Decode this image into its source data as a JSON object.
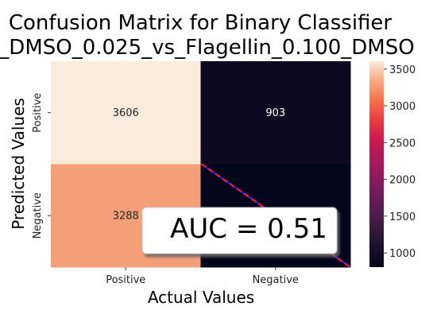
{
  "title_line1": "Confusion Matrix for Binary Classifier",
  "title_line2": "_DMSO_0.025_vs_Flagellin_0.100_DMSO",
  "auc_label": "AUC = 0.51",
  "colors": {
    "diagonal_line": "#2c1cff",
    "diagonal_dash": "#ff1e3c"
  },
  "chart_data": {
    "type": "heatmap",
    "xlabel": "Actual Values",
    "ylabel": "Predicted Values",
    "x_categories": [
      "Positive",
      "Negative"
    ],
    "y_categories": [
      "Positive",
      "Negative"
    ],
    "values": [
      [
        3606,
        903
      ],
      [
        3288,
        807
      ]
    ],
    "cell_labels": [
      [
        "3606",
        "903"
      ],
      [
        "3288",
        ""
      ]
    ],
    "colormap": "rocket",
    "colorbar": {
      "vmin": 807,
      "vmax": 3606,
      "ticks": [
        1000,
        1500,
        2000,
        2500,
        3000,
        3500
      ],
      "tick_labels": [
        "1000",
        "1500",
        "2000",
        "2500",
        "3000",
        "3500"
      ]
    },
    "annotation": "AUC = 0.51"
  }
}
